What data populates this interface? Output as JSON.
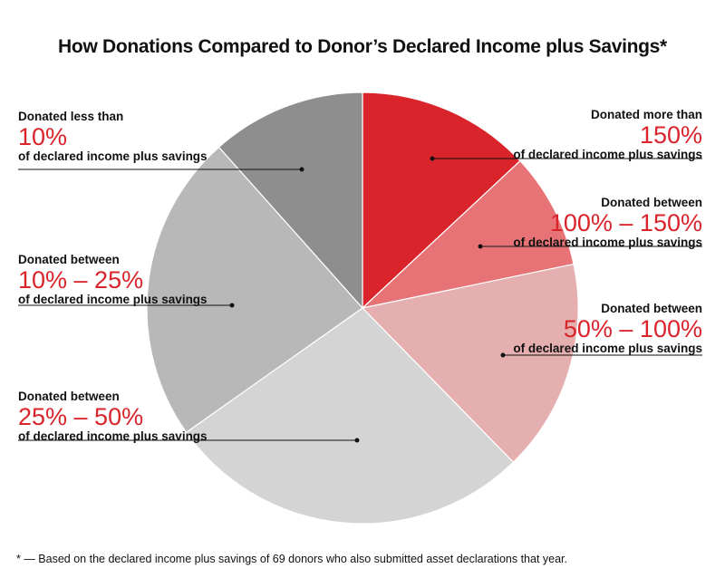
{
  "chart_data": {
    "type": "pie",
    "title": "How Donations Compared to Donor’s Declared Income plus Savings*",
    "start": "top, clockwise",
    "slices": [
      {
        "pre": "Donated more than",
        "pct": "150%",
        "post": "of declared income plus savings",
        "value": 9,
        "color": "#d8242a"
      },
      {
        "pre": "Donated between",
        "pct": "100% – 150%",
        "post": "of declared income plus savings",
        "value": 6,
        "color": "#e87376"
      },
      {
        "pre": "Donated between",
        "pct": "50% – 100%",
        "post": "of declared income plus savings",
        "value": 11,
        "color": "#e5aeaf"
      },
      {
        "pre": "Donated between",
        "pct": "25% – 50%",
        "post": "of declared income plus savings",
        "value": 19,
        "color": "#d4d4d4"
      },
      {
        "pre": "Donated between",
        "pct": "10% – 25%",
        "post": "of declared income plus savings",
        "value": 16,
        "color": "#b8b8b8"
      },
      {
        "pre": "Donated less than",
        "pct": "10%",
        "post": "of declared income plus savings",
        "value": 8,
        "color": "#8e8e8e"
      }
    ],
    "footnote": "* — Based on the declared income plus savings of 69 donors who also submitted asset declarations that year."
  }
}
